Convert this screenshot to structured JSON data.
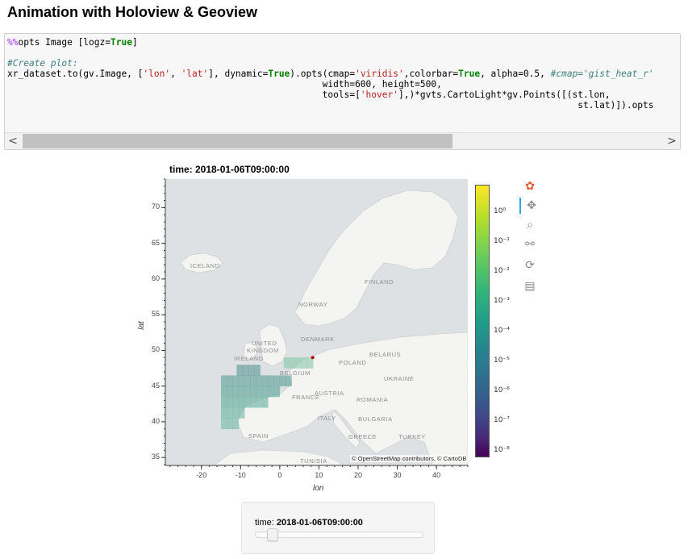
{
  "page": {
    "heading": "Animation with Holoview & Geoview"
  },
  "code": {
    "lines": [
      "%%opts Image [logz=True]",
      "",
      "#Create plot:",
      "xr_dataset.to(gv.Image, ['lon', 'lat'], dynamic=True).opts(cmap='viridis',colorbar=True, alpha=0.5, #cmap='gist_heat_r'",
      "                                                          width=600, height=500,",
      "                                                          tools=['hover'],)*gvts.CartoLight*gv.Points([(st.lon,",
      "                                                                                                         st.lat)]).opts"
    ],
    "scroll_left": "<",
    "scroll_right": ">"
  },
  "plot": {
    "title": "time: 2018-01-06T09:00:00",
    "ylabel": "lat",
    "xlabel": "lon",
    "attribution": "© OpenStreetMap contributors, © CartoDB",
    "country_labels": [
      "ICELAND",
      "FINLAND",
      "NORWAY",
      "UNITED",
      "KINGDOM",
      "IRELAND",
      "DENMARK",
      "BELARUS",
      "POLAND",
      "BELGIUM",
      "UKRAINE",
      "FRANCE",
      "AUSTRIA",
      "ROMANIA",
      "ITALY",
      "BULGARIA",
      "SPAIN",
      "GREECE",
      "TURKEY",
      "TUNISIA"
    ],
    "colorbar_ticks": [
      "10⁰",
      "10⁻¹",
      "10⁻²",
      "10⁻³",
      "10⁻⁴",
      "10⁻⁵",
      "10⁻⁶",
      "10⁻⁷",
      "10⁻⁸"
    ]
  },
  "chart_data": {
    "type": "heatmap",
    "title": "time: 2018-01-06T09:00:00",
    "xlabel": "lon",
    "ylabel": "lat",
    "x_ticks": [
      -20,
      -10,
      0,
      10,
      20,
      30,
      40
    ],
    "y_ticks": [
      35,
      40,
      45,
      50,
      55,
      60,
      65,
      70
    ],
    "xlim": [
      -29,
      48
    ],
    "ylim": [
      34,
      74
    ],
    "colorbar": {
      "cmap": "viridis",
      "scale": "log",
      "range": [
        1e-08,
        1
      ]
    },
    "point": {
      "lon": 8.4,
      "lat": 49.0
    }
  },
  "toolbar": {
    "tools": [
      {
        "name": "bokeh-logo-icon",
        "glyph": "✿"
      },
      {
        "name": "pan-icon",
        "glyph": "✥"
      },
      {
        "name": "box-zoom-icon",
        "glyph": "⌕"
      },
      {
        "name": "wheel-zoom-icon",
        "glyph": "⚯"
      },
      {
        "name": "reset-icon",
        "glyph": "⟳"
      },
      {
        "name": "hover-icon",
        "glyph": "▤"
      }
    ]
  },
  "widget": {
    "label_prefix": "time: ",
    "value": "2018-01-06T09:00:00",
    "slider_position": 0.1
  }
}
